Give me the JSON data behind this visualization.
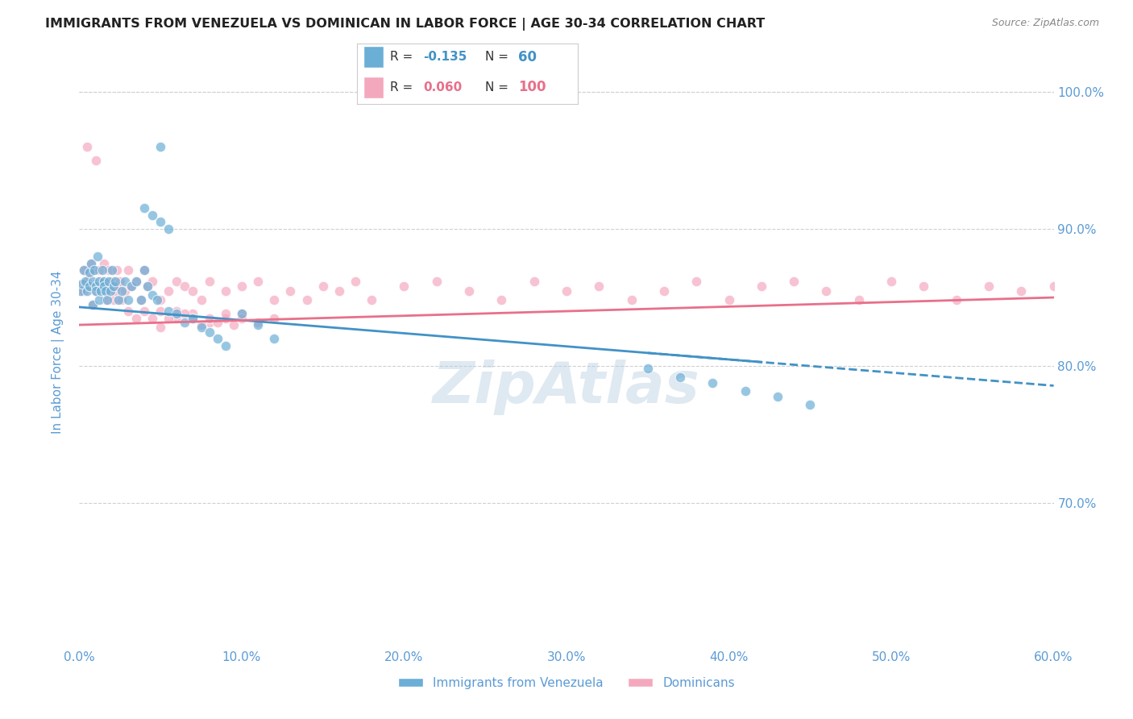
{
  "title": "IMMIGRANTS FROM VENEZUELA VS DOMINICAN IN LABOR FORCE | AGE 30-34 CORRELATION CHART",
  "source": "Source: ZipAtlas.com",
  "ylabel": "In Labor Force | Age 30-34",
  "legend_label1": "Immigrants from Venezuela",
  "legend_label2": "Dominicans",
  "r1": -0.135,
  "n1": 60,
  "r2": 0.06,
  "n2": 100,
  "color1": "#6baed6",
  "color2": "#f4a8be",
  "trendline1_color": "#4292c6",
  "trendline2_color": "#e8708a",
  "background_color": "#ffffff",
  "grid_color": "#d0d0d0",
  "title_color": "#222222",
  "axis_label_color": "#5b9bd5",
  "tick_color": "#5b9bd5",
  "xlim": [
    0.0,
    0.6
  ],
  "ylim": [
    0.595,
    1.025
  ],
  "xticks": [
    0.0,
    0.1,
    0.2,
    0.3,
    0.4,
    0.5,
    0.6
  ],
  "yticks": [
    0.7,
    0.8,
    0.9,
    1.0
  ],
  "watermark": "ZipAtlas",
  "ven_x": [
    0.001,
    0.002,
    0.003,
    0.004,
    0.005,
    0.006,
    0.006,
    0.007,
    0.008,
    0.008,
    0.009,
    0.01,
    0.01,
    0.011,
    0.012,
    0.012,
    0.013,
    0.014,
    0.015,
    0.015,
    0.016,
    0.017,
    0.018,
    0.019,
    0.02,
    0.021,
    0.022,
    0.024,
    0.026,
    0.028,
    0.03,
    0.032,
    0.035,
    0.038,
    0.04,
    0.042,
    0.045,
    0.048,
    0.05,
    0.055,
    0.06,
    0.065,
    0.07,
    0.075,
    0.08,
    0.085,
    0.09,
    0.1,
    0.11,
    0.12,
    0.04,
    0.045,
    0.05,
    0.055,
    0.35,
    0.37,
    0.39,
    0.41,
    0.43,
    0.45
  ],
  "ven_y": [
    0.855,
    0.86,
    0.87,
    0.862,
    0.855,
    0.868,
    0.858,
    0.875,
    0.862,
    0.845,
    0.87,
    0.858,
    0.855,
    0.88,
    0.862,
    0.848,
    0.855,
    0.87,
    0.862,
    0.858,
    0.855,
    0.848,
    0.862,
    0.855,
    0.87,
    0.858,
    0.862,
    0.848,
    0.855,
    0.862,
    0.848,
    0.858,
    0.862,
    0.848,
    0.87,
    0.858,
    0.852,
    0.848,
    0.96,
    0.84,
    0.838,
    0.832,
    0.835,
    0.828,
    0.825,
    0.82,
    0.815,
    0.838,
    0.83,
    0.82,
    0.915,
    0.91,
    0.905,
    0.9,
    0.798,
    0.792,
    0.788,
    0.782,
    0.778,
    0.772
  ],
  "dom_x": [
    0.001,
    0.002,
    0.003,
    0.003,
    0.004,
    0.005,
    0.006,
    0.006,
    0.007,
    0.008,
    0.008,
    0.009,
    0.01,
    0.011,
    0.012,
    0.013,
    0.014,
    0.015,
    0.016,
    0.017,
    0.018,
    0.019,
    0.02,
    0.021,
    0.022,
    0.023,
    0.024,
    0.025,
    0.026,
    0.028,
    0.03,
    0.032,
    0.035,
    0.038,
    0.04,
    0.042,
    0.045,
    0.05,
    0.055,
    0.06,
    0.065,
    0.07,
    0.075,
    0.08,
    0.09,
    0.1,
    0.11,
    0.12,
    0.13,
    0.14,
    0.15,
    0.16,
    0.17,
    0.18,
    0.2,
    0.22,
    0.24,
    0.26,
    0.28,
    0.3,
    0.32,
    0.34,
    0.36,
    0.38,
    0.4,
    0.42,
    0.44,
    0.46,
    0.48,
    0.5,
    0.52,
    0.54,
    0.56,
    0.58,
    0.6,
    0.05,
    0.06,
    0.07,
    0.08,
    0.09,
    0.1,
    0.11,
    0.12,
    0.03,
    0.035,
    0.04,
    0.045,
    0.05,
    0.055,
    0.06,
    0.065,
    0.07,
    0.075,
    0.08,
    0.085,
    0.09,
    0.095,
    0.1,
    0.005,
    0.01
  ],
  "dom_y": [
    0.855,
    0.86,
    0.855,
    0.87,
    0.858,
    0.862,
    0.868,
    0.858,
    0.875,
    0.845,
    0.87,
    0.858,
    0.855,
    0.862,
    0.87,
    0.858,
    0.862,
    0.875,
    0.848,
    0.855,
    0.87,
    0.858,
    0.862,
    0.848,
    0.855,
    0.87,
    0.858,
    0.862,
    0.848,
    0.855,
    0.87,
    0.858,
    0.862,
    0.848,
    0.87,
    0.858,
    0.862,
    0.848,
    0.855,
    0.862,
    0.858,
    0.855,
    0.848,
    0.862,
    0.855,
    0.858,
    0.862,
    0.848,
    0.855,
    0.848,
    0.858,
    0.855,
    0.862,
    0.848,
    0.858,
    0.862,
    0.855,
    0.848,
    0.862,
    0.855,
    0.858,
    0.848,
    0.855,
    0.862,
    0.848,
    0.858,
    0.862,
    0.855,
    0.848,
    0.862,
    0.858,
    0.848,
    0.858,
    0.855,
    0.858,
    0.84,
    0.835,
    0.838,
    0.832,
    0.835,
    0.838,
    0.832,
    0.835,
    0.84,
    0.835,
    0.84,
    0.835,
    0.828,
    0.835,
    0.84,
    0.838,
    0.835,
    0.83,
    0.835,
    0.832,
    0.838,
    0.83,
    0.835,
    0.96,
    0.95
  ]
}
